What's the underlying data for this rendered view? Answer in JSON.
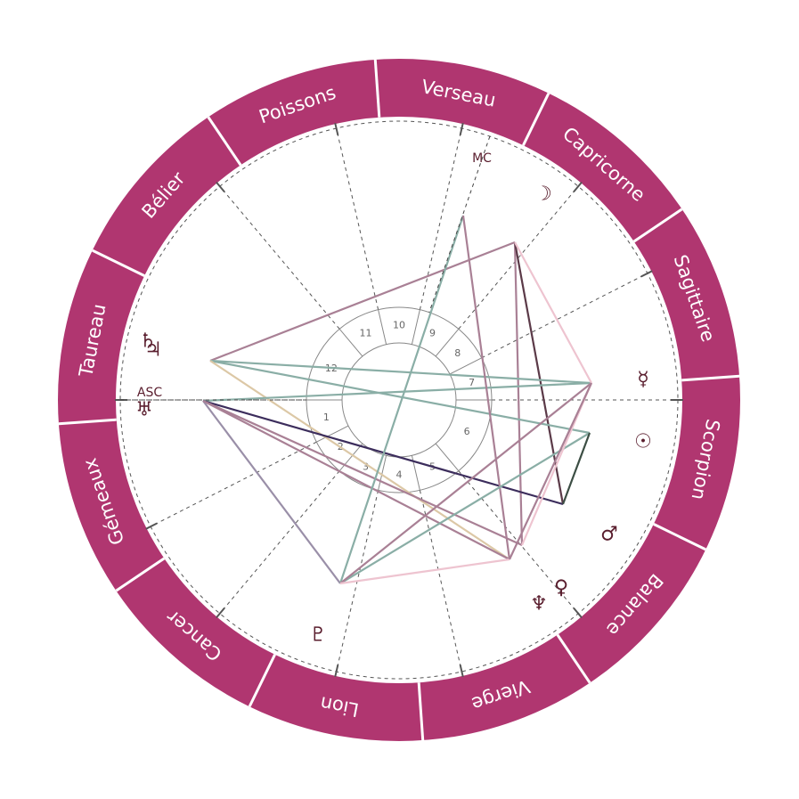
{
  "colors": {
    "ring": "#b03670",
    "ring_divider": "#ffffff",
    "dashed": "#555555",
    "inner_circle": "#888888",
    "glyph": "#5a1e2e"
  },
  "signs": [
    "Verseau",
    "Capricorne",
    "Sagittaire",
    "Scorpion",
    "Balance",
    "Vierge",
    "Lion",
    "Cancer",
    "Gémeaux",
    "Taureau",
    "Bélier",
    "Poissons"
  ],
  "houses": [
    "1",
    "2",
    "3",
    "4",
    "5",
    "6",
    "7",
    "8",
    "9",
    "10",
    "11",
    "12"
  ],
  "axes": {
    "asc": "ASC",
    "mc": "MC"
  },
  "planets": [
    {
      "name": "moon",
      "symbol": "☽"
    },
    {
      "name": "mercury",
      "symbol": "☿"
    },
    {
      "name": "sun",
      "symbol": "☉"
    },
    {
      "name": "mars",
      "symbol": "♂"
    },
    {
      "name": "venus",
      "symbol": "♀"
    },
    {
      "name": "neptune",
      "symbol": "♆"
    },
    {
      "name": "pluto",
      "symbol": "♇"
    },
    {
      "name": "uranus",
      "symbol": "♅"
    },
    {
      "name": "jupiter",
      "symbol": "♃"
    },
    {
      "name": "saturn",
      "symbol": "♄"
    }
  ]
}
